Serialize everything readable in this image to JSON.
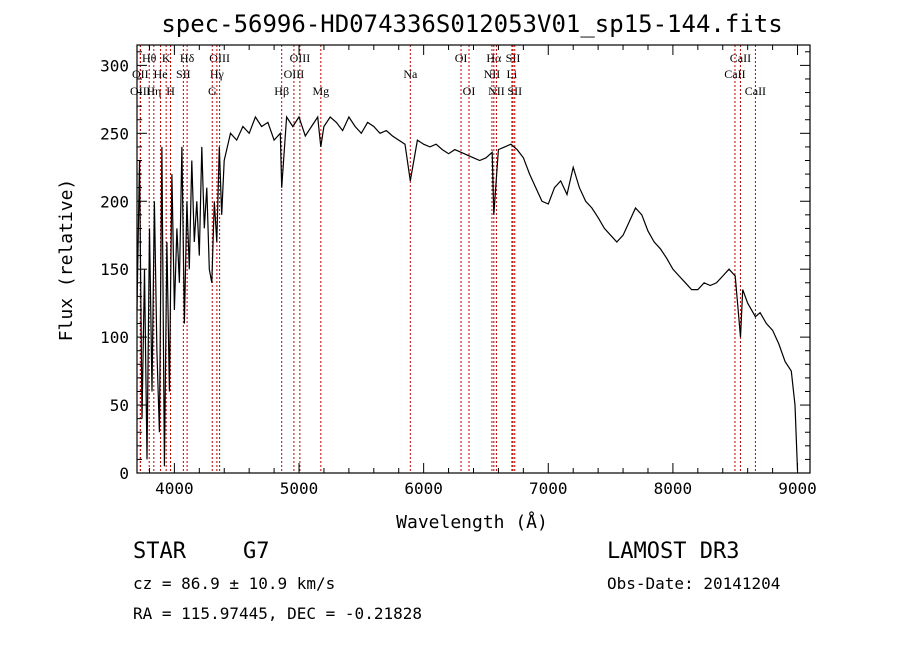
{
  "header": {
    "title": "spec-56996-HD074336S012053V01_sp15-144.fits"
  },
  "info": {
    "class": "STAR",
    "subclass": "G7",
    "cz": "cz = 86.9 ± 10.9 km/s",
    "radec": "RA = 115.97445, DEC =  -0.21828",
    "survey": "LAMOST DR3",
    "obsdate": "Obs-Date: 20141204"
  },
  "chart_data": {
    "type": "line",
    "title": "spec-56996-HD074336S012053V01_sp15-144.fits",
    "xlabel": "Wavelength (Å)",
    "ylabel": "Flux (relative)",
    "xlim": [
      3700,
      9100
    ],
    "ylim": [
      0,
      315
    ],
    "xticks": [
      4000,
      5000,
      6000,
      7000,
      8000,
      9000
    ],
    "yticks": [
      0,
      50,
      100,
      150,
      200,
      250,
      300
    ],
    "grid": false,
    "line_color": "#000000",
    "marker_color": "#c00000",
    "series": [
      {
        "x": [
          3700,
          3720,
          3740,
          3760,
          3780,
          3800,
          3820,
          3840,
          3860,
          3880,
          3900,
          3920,
          3940,
          3960,
          3980,
          4000,
          4020,
          4040,
          4060,
          4080,
          4100,
          4120,
          4140,
          4160,
          4180,
          4200,
          4220,
          4240,
          4260,
          4280,
          4300,
          4320,
          4340,
          4360,
          4380,
          4400,
          4450,
          4500,
          4550,
          4600,
          4650,
          4700,
          4750,
          4800,
          4850,
          4861,
          4900,
          4950,
          5000,
          5050,
          5100,
          5150,
          5175,
          5200,
          5250,
          5300,
          5350,
          5400,
          5450,
          5500,
          5550,
          5600,
          5650,
          5700,
          5750,
          5800,
          5850,
          5893,
          5950,
          6000,
          6050,
          6100,
          6150,
          6200,
          6250,
          6300,
          6350,
          6400,
          6450,
          6500,
          6550,
          6563,
          6600,
          6650,
          6700,
          6750,
          6800,
          6850,
          6900,
          6950,
          7000,
          7050,
          7100,
          7150,
          7200,
          7250,
          7300,
          7350,
          7400,
          7450,
          7500,
          7550,
          7600,
          7650,
          7700,
          7750,
          7800,
          7850,
          7900,
          7950,
          8000,
          8050,
          8100,
          8150,
          8200,
          8250,
          8300,
          8350,
          8400,
          8450,
          8500,
          8542,
          8560,
          8600,
          8662,
          8700,
          8750,
          8800,
          8850,
          8900,
          8950,
          8980,
          9000
        ],
        "y": [
          120,
          230,
          40,
          150,
          10,
          180,
          60,
          200,
          90,
          30,
          240,
          5,
          170,
          60,
          220,
          120,
          180,
          140,
          240,
          110,
          200,
          150,
          230,
          170,
          200,
          160,
          240,
          180,
          210,
          150,
          140,
          200,
          170,
          240,
          190,
          230,
          250,
          245,
          255,
          250,
          262,
          255,
          258,
          245,
          250,
          210,
          262,
          255,
          262,
          248,
          255,
          262,
          240,
          255,
          262,
          258,
          252,
          262,
          255,
          250,
          258,
          255,
          250,
          252,
          248,
          245,
          242,
          215,
          245,
          242,
          240,
          242,
          238,
          235,
          238,
          236,
          234,
          232,
          230,
          232,
          236,
          190,
          238,
          240,
          242,
          238,
          232,
          220,
          210,
          200,
          198,
          210,
          215,
          205,
          225,
          210,
          200,
          195,
          188,
          180,
          175,
          170,
          175,
          185,
          195,
          190,
          178,
          170,
          165,
          158,
          150,
          145,
          140,
          135,
          135,
          140,
          138,
          140,
          145,
          150,
          145,
          100,
          135,
          125,
          115,
          118,
          110,
          105,
          95,
          82,
          75,
          50,
          2
        ]
      }
    ],
    "line_markers": [
      {
        "label": "Hθ",
        "x": 3798,
        "row": 1
      },
      {
        "label": "OII",
        "x": 3727,
        "row": 2
      },
      {
        "label": "OIII",
        "x": 3727,
        "row": 3
      },
      {
        "label": "Hη",
        "x": 3835,
        "row": 3
      },
      {
        "label": "K",
        "x": 3934,
        "row": 1
      },
      {
        "label": "He",
        "x": 3889,
        "row": 2
      },
      {
        "label": "H",
        "x": 3969,
        "row": 3
      },
      {
        "label": "Hδ",
        "x": 4102,
        "row": 1
      },
      {
        "label": "SII",
        "x": 4072,
        "row": 2
      },
      {
        "label": "OIII",
        "x": 4363,
        "row": 1
      },
      {
        "label": "Hγ",
        "x": 4341,
        "row": 2
      },
      {
        "label": "G",
        "x": 4304,
        "row": 3
      },
      {
        "label": "Hβ",
        "x": 4861,
        "row": 3
      },
      {
        "label": "OIII",
        "x": 5007,
        "row": 1
      },
      {
        "label": "OIII",
        "x": 4959,
        "row": 2
      },
      {
        "label": "Mg",
        "x": 5175,
        "row": 3
      },
      {
        "label": "Na",
        "x": 5893,
        "row": 2
      },
      {
        "label": "OI",
        "x": 6300,
        "row": 1
      },
      {
        "label": "OI",
        "x": 6364,
        "row": 3
      },
      {
        "label": "Hα",
        "x": 6563,
        "row": 1
      },
      {
        "label": "NII",
        "x": 6548,
        "row": 2
      },
      {
        "label": "NII",
        "x": 6584,
        "row": 3
      },
      {
        "label": "SII",
        "x": 6717,
        "row": 1
      },
      {
        "label": "Li",
        "x": 6708,
        "row": 2
      },
      {
        "label": "SII",
        "x": 6731,
        "row": 3
      },
      {
        "label": "CaII",
        "x": 8542,
        "row": 1
      },
      {
        "label": "CaII",
        "x": 8498,
        "row": 2
      },
      {
        "label": "CaII",
        "x": 8662,
        "row": 3
      }
    ]
  }
}
